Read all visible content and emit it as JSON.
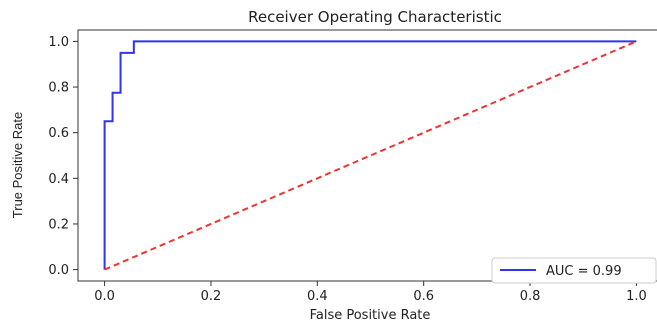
{
  "chart_data": {
    "type": "line",
    "title": "Receiver Operating Characteristic",
    "xlabel": "False Positive Rate",
    "ylabel": "True Positive Rate",
    "xlim": [
      -0.05,
      1.05
    ],
    "ylim": [
      -0.05,
      1.05
    ],
    "x_ticks": [
      0.0,
      0.2,
      0.4,
      0.6,
      0.8,
      1.0
    ],
    "x_tick_labels": [
      "0.0",
      "0.2",
      "0.4",
      "0.6",
      "0.8",
      "1.0"
    ],
    "y_ticks": [
      0.0,
      0.2,
      0.4,
      0.6,
      0.8,
      1.0
    ],
    "y_tick_labels": [
      "0.0",
      "0.2",
      "0.4",
      "0.6",
      "0.8",
      "1.0"
    ],
    "grid": false,
    "legend_position": "lower-right",
    "series": [
      {
        "name": "AUC = 0.99",
        "color": "#3333ee",
        "style": "solid",
        "x": [
          0.0,
          0.0,
          0.0,
          0.015,
          0.015,
          0.03,
          0.03,
          0.055,
          0.055,
          1.0
        ],
        "y": [
          0.0,
          0.65,
          0.65,
          0.65,
          0.775,
          0.775,
          0.95,
          0.95,
          1.0,
          1.0
        ]
      },
      {
        "color": "#ee3333",
        "style": "dashed",
        "x": [
          0.0,
          1.0
        ],
        "y": [
          0.0,
          1.0
        ]
      }
    ]
  }
}
